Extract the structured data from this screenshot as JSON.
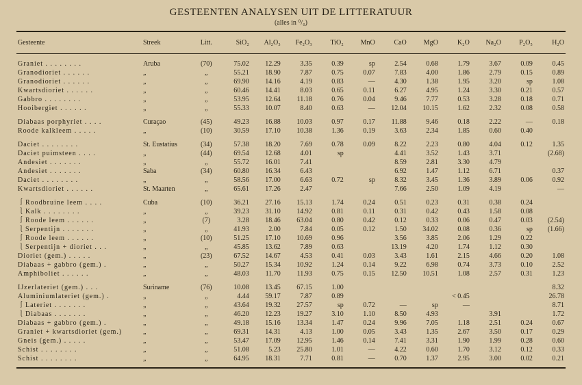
{
  "title": "GESTEENTEN ANALYSEN UIT DE LITTERATUUR",
  "subtitle": "(alles in ⁰/₀)",
  "headers": {
    "gesteente": "Gesteente",
    "streek": "Streek",
    "litt": "Litt.",
    "c0": "SiO₂",
    "c1": "Al₂O₃",
    "c2": "Fe₂O₃",
    "c3": "TiO₂",
    "c4": "MnO",
    "c5": "CaO",
    "c6": "MgO",
    "c7": "K₂O",
    "c8": "Na₂O",
    "c9": "P₂O₅",
    "c10": "H₂O"
  },
  "groups": [
    {
      "rows": [
        {
          "g": "Graniet . . . . . . . .",
          "s": "Aruba",
          "l": "(70)",
          "v": [
            "75.02",
            "12.29",
            "3.35",
            "0.39",
            "sp",
            "2.54",
            "0.68",
            "1.79",
            "3.67",
            "0.09",
            "0.45"
          ]
        },
        {
          "g": "Granodioriet . . . . . .",
          "s": "„",
          "l": "„",
          "v": [
            "55.21",
            "18.90",
            "7.87",
            "0.75",
            "0.07",
            "7.83",
            "4.00",
            "1.86",
            "2.79",
            "0.15",
            "0.89"
          ]
        },
        {
          "g": "Granodioriet . . . . . .",
          "s": "„",
          "l": "„",
          "v": [
            "69.90",
            "14.16",
            "4.19",
            "0.83",
            "—",
            "4.30",
            "1.38",
            "1.95",
            "3.20",
            "sp",
            "1.08"
          ]
        },
        {
          "g": "Kwartsdioriet . . . . . .",
          "s": "„",
          "l": "„",
          "v": [
            "60.46",
            "14.41",
            "8.03",
            "0.65",
            "0.11",
            "6.27",
            "4.95",
            "1.24",
            "3.30",
            "0.21",
            "0.57"
          ]
        },
        {
          "g": "Gabbro . . . . . . . .",
          "s": "„",
          "l": "„",
          "v": [
            "53.95",
            "12.64",
            "11.18",
            "0.76",
            "0.04",
            "9.46",
            "7.77",
            "0.53",
            "3.28",
            "0.18",
            "0.71"
          ]
        },
        {
          "g": "Hooibergiet . . . . . .",
          "s": "„",
          "l": "„",
          "v": [
            "55.33",
            "10.07",
            "8.40",
            "0.63",
            "—",
            "12.04",
            "10.15",
            "1.62",
            "2.32",
            "0.08",
            "0.58"
          ]
        }
      ]
    },
    {
      "rows": [
        {
          "g": "Diabaas porphyriet . . . .",
          "s": "Curaçao",
          "l": "(45)",
          "v": [
            "49.23",
            "16.88",
            "10.03",
            "0.97",
            "0.17",
            "11.88",
            "9.46",
            "0.18",
            "2.22",
            "—",
            "0.18"
          ]
        },
        {
          "g": "Roode kalkleem . . . . .",
          "s": "„",
          "l": "(10)",
          "v": [
            "30.59",
            "17.10",
            "10.38",
            "1.36",
            "0.19",
            "3.63",
            "2.34",
            "1.85",
            "0.60",
            "0.40",
            ""
          ]
        }
      ]
    },
    {
      "rows": [
        {
          "g": "Daciet . . . . . . . .",
          "s": "St. Eustatius",
          "l": "(34)",
          "v": [
            "57.38",
            "18.20",
            "7.69",
            "0.78",
            "0.09",
            "8.22",
            "2.23",
            "0.80",
            "4.04",
            "0.12",
            "1.35"
          ]
        },
        {
          "g": "Daciet puimsteen . . . .",
          "s": "„",
          "l": "(44)",
          "v": [
            "69.54",
            "12.68",
            "4.01",
            "sp",
            "",
            "4.41",
            "3.52",
            "1.43",
            "3.71",
            "",
            "(2.68)"
          ]
        },
        {
          "g": "Andesiet . . . . . . .",
          "s": "„",
          "l": "„",
          "v": [
            "55.72",
            "16.01",
            "7.41",
            "",
            "",
            "8.59",
            "2.81",
            "3.30",
            "4.79",
            "",
            ""
          ]
        },
        {
          "g": "Andesiet . . . . . . .",
          "s": "Saba",
          "l": "(34)",
          "v": [
            "60.80",
            "16.34",
            "6.43",
            "",
            "",
            "6.92",
            "1.47",
            "1.12",
            "6.71",
            "",
            "0.37"
          ]
        },
        {
          "g": "Daciet . . . . . . . .",
          "s": "„",
          "l": "„",
          "v": [
            "58.56",
            "17.00",
            "6.63",
            "0.72",
            "sp",
            "8.32",
            "3.45",
            "1.36",
            "3.89",
            "0.06",
            "0.92"
          ]
        },
        {
          "g": "Kwartsdioriet . . . . . .",
          "s": "St. Maarten",
          "l": "„",
          "v": [
            "65.61",
            "17.26",
            "2.47",
            "",
            "",
            "7.66",
            "2.50",
            "1.09",
            "4.19",
            "",
            "—"
          ]
        }
      ]
    },
    {
      "rows": [
        {
          "g": "Roodbruine leem . . . .",
          "s": "Cuba",
          "l": "(10)",
          "v": [
            "36.21",
            "27.16",
            "15.13",
            "1.74",
            "0.24",
            "0.51",
            "0.23",
            "0.31",
            "0.38",
            "0.24",
            ""
          ],
          "br": "open"
        },
        {
          "g": "Kalk . . . . . . . .",
          "s": "„",
          "l": "„",
          "v": [
            "39.23",
            "31.10",
            "14.92",
            "0.81",
            "0.11",
            "0.31",
            "0.42",
            "0.43",
            "1.58",
            "0.08",
            ""
          ],
          "br": "close"
        },
        {
          "g": "Roode leem . . . . . .",
          "s": "„",
          "l": "(7)",
          "v": [
            "3.28",
            "18.46",
            "63.04",
            "0.80",
            "0.42",
            "0.12",
            "0.33",
            "0.06",
            "0.47",
            "0.03",
            "(2.54)"
          ],
          "br": "open"
        },
        {
          "g": "Serpentijn . . . . . . .",
          "s": "„",
          "l": "„",
          "v": [
            "41.93",
            "2.00",
            "7.84",
            "0.05",
            "0.12",
            "1.50",
            "34.02",
            "0.08",
            "0.36",
            "sp",
            "(1.66)"
          ],
          "br": "close"
        },
        {
          "g": "Roode leem . . . . . .",
          "s": "„",
          "l": "(10)",
          "v": [
            "51.25",
            "17.10",
            "10.69",
            "0.96",
            "",
            "3.56",
            "3.85",
            "2.06",
            "1.29",
            "0.22",
            ""
          ],
          "br": "open"
        },
        {
          "g": "Serpentijn + dioriet . . .",
          "s": "„",
          "l": "„",
          "v": [
            "45.85",
            "13.62",
            "7.89",
            "0.63",
            "",
            "13.19",
            "4.20",
            "1.74",
            "1.12",
            "0.30",
            ""
          ],
          "br": "close"
        },
        {
          "g": "Dioriet (gem.) . . . . .",
          "s": "„",
          "l": "(23)",
          "v": [
            "67.52",
            "14.67",
            "4.53",
            "0.41",
            "0.03",
            "3.43",
            "1.61",
            "2.15",
            "4.66",
            "0.20",
            "1.08"
          ]
        },
        {
          "g": "Diabaas + gabbro (gem.) .",
          "s": "„",
          "l": "„",
          "v": [
            "50.27",
            "15.34",
            "10.92",
            "1.24",
            "0.14",
            "9.22",
            "6.98",
            "0.74",
            "3.73",
            "0.10",
            "2.52"
          ]
        },
        {
          "g": "Amphiboliet . . . . . .",
          "s": "„",
          "l": "„",
          "v": [
            "48.03",
            "11.70",
            "11.93",
            "0.75",
            "0.15",
            "12.50",
            "10.51",
            "1.08",
            "2.57",
            "0.31",
            "1.23"
          ]
        }
      ]
    },
    {
      "rows": [
        {
          "g": "IJzerlateriet (gem.) . . .",
          "s": "Suriname",
          "l": "(76)",
          "v": [
            "10.08",
            "13.45",
            "67.15",
            "1.00",
            "",
            "",
            "",
            "",
            "",
            "",
            "8.32"
          ]
        },
        {
          "g": "Aluminiumlateriet (gem.) .",
          "s": "„",
          "l": "„",
          "v": [
            "4.44",
            "59.17",
            "7.87",
            "0.89",
            "",
            "",
            "",
            "< 0.45",
            "",
            "",
            "26.78"
          ]
        },
        {
          "g": "Lateriet . . . . . . .",
          "s": "„",
          "l": "„",
          "v": [
            "43.64",
            "19.32",
            "27.57",
            "sp",
            "0.72",
            "—",
            "sp",
            "—",
            "",
            "",
            "8.71"
          ],
          "br": "open"
        },
        {
          "g": "Diabaas . . . . . . .",
          "s": "„",
          "l": "„",
          "v": [
            "46.20",
            "12.23",
            "19.27",
            "3.10",
            "1.10",
            "8.50",
            "4.93",
            "",
            "3.91",
            "",
            "1.72"
          ],
          "br": "close"
        },
        {
          "g": "Diabaas + gabbro (gem.) .",
          "s": "„",
          "l": "„",
          "v": [
            "49.18",
            "15.16",
            "13.34",
            "1.47",
            "0.24",
            "9.96",
            "7.05",
            "1.18",
            "2.51",
            "0.24",
            "0.67"
          ]
        },
        {
          "g": "Graniet + kwartsdioriet (gem.)",
          "s": "„",
          "l": "„",
          "v": [
            "69.31",
            "14.31",
            "4.13",
            "1.00",
            "0.05",
            "3.43",
            "1.35",
            "2.67",
            "3.50",
            "0.17",
            "0.29"
          ]
        },
        {
          "g": "Gneis (gem.) . . . . .",
          "s": "„",
          "l": "„",
          "v": [
            "53.47",
            "17.09",
            "12.95",
            "1.46",
            "0.14",
            "7.41",
            "3.31",
            "1.90",
            "1.99",
            "0.28",
            "0.60"
          ]
        },
        {
          "g": "Schist . . . . . . . .",
          "s": "„",
          "l": "„",
          "v": [
            "51.08",
            "5.23",
            "25.80",
            "1.01",
            "—",
            "4.22",
            "0.60",
            "1.70",
            "3.12",
            "0.12",
            "0.33"
          ]
        },
        {
          "g": "Schist . . . . . . . .",
          "s": "„",
          "l": "„",
          "v": [
            "64.95",
            "18.31",
            "7.71",
            "0.81",
            "—",
            "0.70",
            "1.37",
            "2.95",
            "3.00",
            "0.02",
            "0.21"
          ]
        }
      ]
    }
  ]
}
